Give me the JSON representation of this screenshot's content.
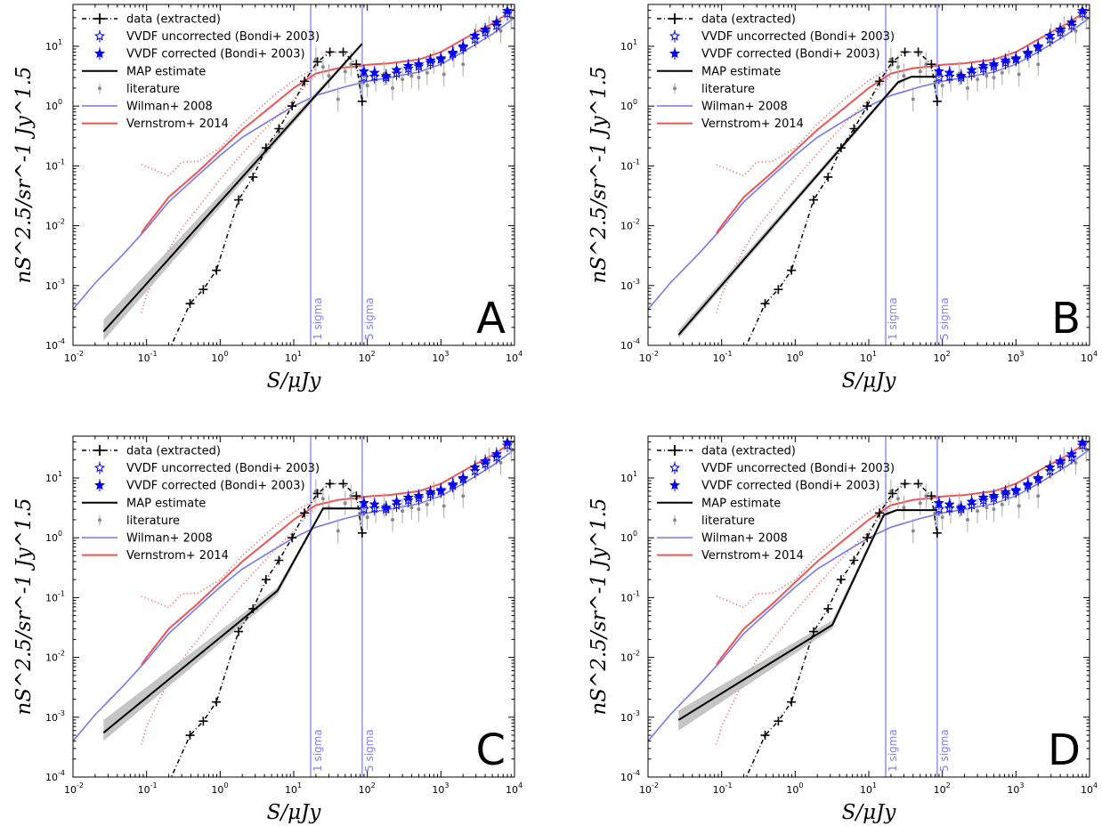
{
  "chart_data": [
    {
      "type": "line",
      "panel_label": "A",
      "xscale": "log",
      "yscale": "log",
      "xlim": [
        0.01,
        10000
      ],
      "ylim": [
        0.0001,
        50
      ],
      "xlabel": "S/μJy",
      "ylabel": "nS^2.5/sr^-1 Jy^1.5",
      "xticks": [
        "10^-2",
        "10^-1",
        "10^0",
        "10^1",
        "10^2",
        "10^3",
        "10^4"
      ],
      "yticks": [
        "10^-4",
        "10^-3",
        "10^-2",
        "10^-1",
        "10^0",
        "10^1"
      ],
      "vlines": [
        {
          "x": 17,
          "label": "1 sigma"
        },
        {
          "x": 85,
          "label": "5 sigma"
        }
      ],
      "legend": [
        "data (extracted)",
        "VVDF uncorrected (Bondi+ 2003)",
        "VVDF corrected (Bondi+ 2003)",
        "MAP estimate",
        "literature",
        "Wilman+ 2008",
        "Vernstrom+ 2014"
      ],
      "legend_position": "top-left",
      "map_estimate": {
        "x": [
          0.026,
          85
        ],
        "y": [
          0.00017,
          11
        ]
      },
      "map_band": {
        "upper": [
          0.00027,
          11.5
        ],
        "lower": [
          0.00012,
          10.5
        ]
      }
    },
    {
      "type": "line",
      "panel_label": "B",
      "xscale": "log",
      "yscale": "log",
      "xlim": [
        0.01,
        10000
      ],
      "ylim": [
        0.0001,
        50
      ],
      "xlabel": "S/μJy",
      "ylabel": "nS^2.5/sr^-1 Jy^1.5",
      "xticks": [
        "10^-2",
        "10^-1",
        "10^0",
        "10^1",
        "10^2",
        "10^3",
        "10^4"
      ],
      "yticks": [
        "10^-4",
        "10^-3",
        "10^-2",
        "10^-1",
        "10^0",
        "10^1"
      ],
      "vlines": [
        {
          "x": 17,
          "label": "1 sigma"
        },
        {
          "x": 85,
          "label": "5 sigma"
        }
      ],
      "legend": [
        "data (extracted)",
        "VVDF uncorrected (Bondi+ 2003)",
        "VVDF corrected (Bondi+ 2003)",
        "MAP estimate",
        "literature",
        "Wilman+ 2008",
        "Vernstrom+ 2014"
      ],
      "legend_position": "top-left",
      "map_estimate": {
        "x": [
          0.026,
          25,
          38,
          85
        ],
        "y": [
          0.00015,
          2.5,
          3.1,
          3.1
        ]
      },
      "map_band": {
        "upper": [
          0.00018,
          2.7,
          3.2,
          3.2
        ],
        "lower": [
          0.00013,
          2.3,
          3.0,
          3.0
        ]
      }
    },
    {
      "type": "line",
      "panel_label": "C",
      "xscale": "log",
      "yscale": "log",
      "xlim": [
        0.01,
        10000
      ],
      "ylim": [
        0.0001,
        50
      ],
      "xlabel": "S/μJy",
      "ylabel": "nS^2.5/sr^-1 Jy^1.5",
      "xticks": [
        "10^-2",
        "10^-1",
        "10^0",
        "10^1",
        "10^2",
        "10^3",
        "10^4"
      ],
      "yticks": [
        "10^-4",
        "10^-3",
        "10^-2",
        "10^-1",
        "10^0",
        "10^1"
      ],
      "vlines": [
        {
          "x": 17,
          "label": "1 sigma"
        },
        {
          "x": 85,
          "label": "5 sigma"
        }
      ],
      "legend": [
        "data (extracted)",
        "VVDF uncorrected (Bondi+ 2003)",
        "VVDF corrected (Bondi+ 2003)",
        "MAP estimate",
        "literature",
        "Wilman+ 2008",
        "Vernstrom+ 2014"
      ],
      "legend_position": "top-left",
      "map_estimate": {
        "x": [
          0.026,
          6,
          25,
          85
        ],
        "y": [
          0.00055,
          0.13,
          3.1,
          3.1
        ]
      },
      "map_band": {
        "upper": [
          0.0009,
          0.15,
          3.3,
          3.2
        ],
        "lower": [
          0.0004,
          0.11,
          2.9,
          3.0
        ]
      }
    },
    {
      "type": "line",
      "panel_label": "D",
      "xscale": "log",
      "yscale": "log",
      "xlim": [
        0.01,
        10000
      ],
      "ylim": [
        0.0001,
        50
      ],
      "xlabel": "S/μJy",
      "ylabel": "nS^2.5/sr^-1 Jy^1.5",
      "xticks": [
        "10^-2",
        "10^-1",
        "10^0",
        "10^1",
        "10^2",
        "10^3",
        "10^4"
      ],
      "yticks": [
        "10^-4",
        "10^-3",
        "10^-2",
        "10^-1",
        "10^0",
        "10^1"
      ],
      "vlines": [
        {
          "x": 17,
          "label": "1 sigma"
        },
        {
          "x": 85,
          "label": "5 sigma"
        }
      ],
      "legend": [
        "data (extracted)",
        "VVDF uncorrected (Bondi+ 2003)",
        "VVDF corrected (Bondi+ 2003)",
        "MAP estimate",
        "literature",
        "Wilman+ 2008",
        "Vernstrom+ 2014"
      ],
      "legend_position": "top-left",
      "map_estimate": {
        "x": [
          0.026,
          3.2,
          16,
          24,
          85
        ],
        "y": [
          0.0009,
          0.035,
          2.4,
          2.9,
          2.9
        ]
      },
      "map_band": {
        "upper": [
          0.0013,
          0.042,
          2.6,
          3.0,
          3.0
        ],
        "lower": [
          0.0006,
          0.03,
          2.2,
          2.8,
          2.8
        ]
      }
    }
  ],
  "shared_series": {
    "data_extracted": {
      "x": [
        0.39,
        0.59,
        0.89,
        1.78,
        2.8,
        4.2,
        6.3,
        9.5,
        14,
        21,
        31,
        47,
        71,
        85
      ],
      "y": [
        0.0005,
        0.00086,
        0.0018,
        0.027,
        0.065,
        0.2,
        0.42,
        1.0,
        2.6,
        5.5,
        8.0,
        8.0,
        5.0,
        1.2
      ]
    },
    "vvdf_uncorrected": {
      "x": [
        90,
        125,
        180,
        250,
        360,
        500,
        720,
        1000,
        1450,
        2000,
        2900,
        4000,
        5700,
        8000
      ],
      "y": [
        3.0,
        3.1,
        3.0,
        3.5,
        4.2,
        4.6,
        5.3,
        6.0,
        7.4,
        9.5,
        13,
        17,
        22,
        35
      ]
    },
    "vvdf_corrected": {
      "x": [
        90,
        125,
        180,
        250,
        360,
        500,
        720,
        1000,
        1450,
        2000,
        2900,
        4000,
        5700,
        8000
      ],
      "y": [
        3.8,
        3.6,
        3.2,
        4.0,
        4.7,
        5.0,
        5.8,
        6.3,
        7.8,
        10,
        15,
        19,
        25,
        39
      ]
    },
    "literature": {
      "x": [
        20,
        25,
        30,
        40,
        50,
        60,
        80,
        100,
        130,
        170,
        220,
        300,
        400,
        500,
        650,
        800,
        1100,
        1500,
        2000,
        3000,
        4500,
        6500,
        9000
      ],
      "y": [
        6.0,
        4.5,
        3.2,
        1.3,
        3.8,
        5.0,
        2.5,
        2.2,
        2.8,
        3.5,
        2.0,
        2.8,
        3.2,
        3.0,
        3.6,
        5.5,
        3.4,
        7.0,
        5.0,
        15,
        20,
        18,
        30
      ]
    },
    "wilman_2008": {
      "x": [
        0.01,
        0.02,
        0.05,
        0.1,
        0.2,
        0.5,
        1,
        2,
        5,
        10,
        20,
        50,
        100,
        200,
        500,
        1000,
        2000,
        5000,
        10000
      ],
      "y": [
        0.0004,
        0.0011,
        0.0035,
        0.009,
        0.025,
        0.07,
        0.15,
        0.3,
        0.6,
        1.0,
        1.5,
        2.1,
        2.6,
        3.0,
        3.7,
        5.0,
        8.0,
        16,
        30
      ]
    },
    "vernstrom_2014": {
      "x": [
        0.085,
        0.1,
        0.2,
        0.5,
        1,
        2,
        5,
        10,
        20,
        40,
        70,
        100,
        200,
        500,
        1000,
        2000,
        5000,
        10000
      ],
      "y": [
        0.0075,
        0.01,
        0.03,
        0.08,
        0.18,
        0.4,
        1.0,
        2.0,
        3.5,
        4.3,
        4.6,
        4.9,
        5.2,
        6.0,
        8.0,
        13,
        24,
        42
      ]
    },
    "vernstrom_upper": {
      "x": [
        0.085,
        0.13,
        0.2,
        0.3,
        0.5,
        1,
        2,
        5,
        10,
        15,
        20
      ],
      "y": [
        0.105,
        0.085,
        0.068,
        0.115,
        0.12,
        0.2,
        0.5,
        1.4,
        2.7,
        3.6,
        4.2
      ]
    },
    "vernstrom_lower": {
      "x": [
        0.085,
        0.1,
        0.15,
        0.2,
        0.3,
        0.5,
        1,
        2,
        5,
        10,
        15,
        20
      ],
      "y": [
        0.00035,
        0.0007,
        0.002,
        0.004,
        0.009,
        0.02,
        0.06,
        0.16,
        0.55,
        1.3,
        2.3,
        3.2
      ]
    }
  },
  "colors": {
    "data": "#000000",
    "vvdf": "#0000ee",
    "map": "#000000",
    "map_band": "#bbbbbb",
    "literature": "#888888",
    "wilman": "#7777ee",
    "vernstrom": "#ee5555",
    "sigma_line": "#aaaaee"
  }
}
